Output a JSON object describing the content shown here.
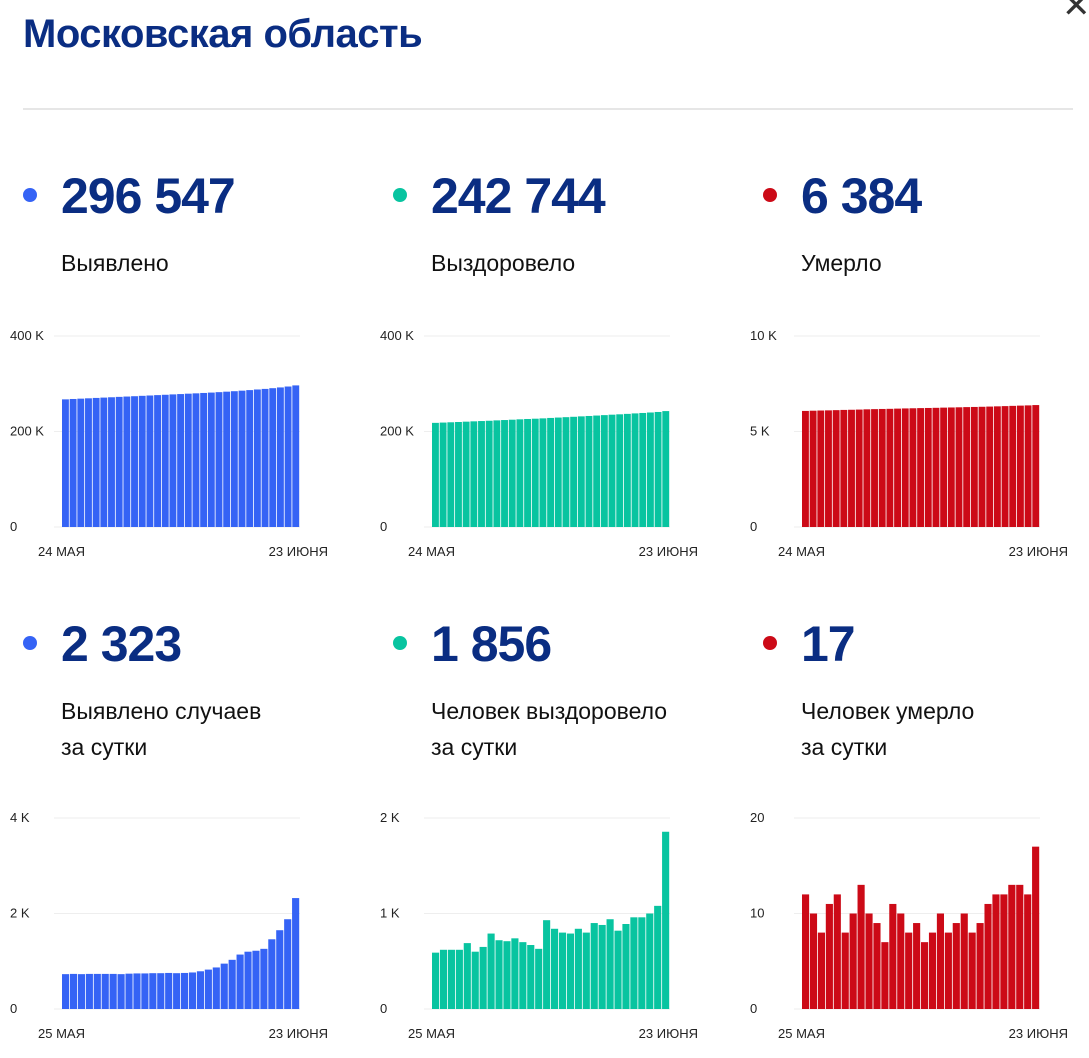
{
  "title": "Московская область",
  "close_icon": "close-icon",
  "colors": {
    "confirmed": "#3563f5",
    "recovered": "#08c4a0",
    "deaths": "#cc0a17"
  },
  "cards": [
    {
      "value": "296 547",
      "label1": "Выявлено",
      "label2": "",
      "color": "#3563f5"
    },
    {
      "value": "242 744",
      "label1": "Выздоровело",
      "label2": "",
      "color": "#08c4a0"
    },
    {
      "value": "6 384",
      "label1": "Умерло",
      "label2": "",
      "color": "#cc0a17"
    },
    {
      "value": "2 323",
      "label1": "Выявлено случаев",
      "label2": "за сутки",
      "color": "#3563f5"
    },
    {
      "value": "1 856",
      "label1": "Человек выздоровело",
      "label2": "за сутки",
      "color": "#08c4a0"
    },
    {
      "value": "17",
      "label1": "Человек умерло",
      "label2": "за сутки",
      "color": "#cc0a17"
    }
  ],
  "chart_data": [
    {
      "type": "bar",
      "title": "Выявлено",
      "ylim": [
        0,
        400000
      ],
      "yticks": [
        "0",
        "200 K",
        "400 K"
      ],
      "xlabels": [
        "24 МАЯ",
        "23 ИЮНЯ"
      ],
      "color": "#3563f5",
      "values": [
        267300,
        268100,
        268800,
        269500,
        270300,
        271000,
        271700,
        272500,
        273200,
        273900,
        274700,
        275400,
        276200,
        276900,
        277700,
        278400,
        279200,
        279900,
        280700,
        281500,
        282400,
        283400,
        284400,
        285500,
        286700,
        288000,
        289200,
        290700,
        292300,
        294200,
        296547
      ]
    },
    {
      "type": "bar",
      "title": "Выздоровело",
      "ylim": [
        0,
        400000
      ],
      "yticks": [
        "0",
        "200 K",
        "400 K"
      ],
      "xlabels": [
        "24 МАЯ",
        "23 ИЮНЯ"
      ],
      "color": "#08c4a0",
      "values": [
        218100,
        218700,
        219300,
        219900,
        220600,
        221300,
        221900,
        222500,
        223300,
        224000,
        224700,
        225500,
        226200,
        226800,
        227500,
        228400,
        229200,
        230000,
        230800,
        231700,
        232500,
        233400,
        234300,
        235200,
        236000,
        236900,
        237900,
        238800,
        239800,
        240900,
        242744
      ]
    },
    {
      "type": "bar",
      "title": "Умерло",
      "ylim": [
        0,
        10000
      ],
      "yticks": [
        "0",
        "5 K",
        "10 K"
      ],
      "xlabels": [
        "24 МАЯ",
        "23 ИЮНЯ"
      ],
      "color": "#cc0a17",
      "values": [
        6077,
        6089,
        6099,
        6107,
        6118,
        6130,
        6138,
        6148,
        6161,
        6171,
        6180,
        6187,
        6198,
        6208,
        6216,
        6225,
        6232,
        6240,
        6250,
        6258,
        6267,
        6277,
        6285,
        6294,
        6305,
        6317,
        6329,
        6342,
        6355,
        6367,
        6384
      ]
    },
    {
      "type": "bar",
      "title": "Выявлено случаев за сутки",
      "ylim": [
        0,
        4000
      ],
      "yticks": [
        "0",
        "2 K",
        "4 K"
      ],
      "xlabels": [
        "25 МАЯ",
        "23 ИЮНЯ"
      ],
      "color": "#3563f5",
      "values": [
        730,
        735,
        730,
        735,
        735,
        735,
        735,
        730,
        740,
        745,
        745,
        750,
        750,
        755,
        750,
        755,
        765,
        790,
        825,
        870,
        950,
        1030,
        1140,
        1200,
        1220,
        1260,
        1460,
        1650,
        1880,
        2323
      ]
    },
    {
      "type": "bar",
      "title": "Человек выздоровело за сутки",
      "ylim": [
        0,
        2000
      ],
      "yticks": [
        "0",
        "1 K",
        "2 K"
      ],
      "xlabels": [
        "25 МАЯ",
        "23 ИЮНЯ"
      ],
      "color": "#08c4a0",
      "values": [
        590,
        620,
        620,
        620,
        690,
        600,
        650,
        790,
        720,
        710,
        740,
        700,
        670,
        630,
        930,
        840,
        800,
        790,
        840,
        800,
        900,
        880,
        940,
        820,
        890,
        960,
        960,
        1000,
        1080,
        1856
      ]
    },
    {
      "type": "bar",
      "title": "Человек умерло за сутки",
      "ylim": [
        0,
        20
      ],
      "yticks": [
        "0",
        "10",
        "20"
      ],
      "xlabels": [
        "25 МАЯ",
        "23 ИЮНЯ"
      ],
      "color": "#cc0a17",
      "values": [
        12,
        10,
        8,
        11,
        12,
        8,
        10,
        13,
        10,
        9,
        7,
        11,
        10,
        8,
        9,
        7,
        8,
        10,
        8,
        9,
        10,
        8,
        9,
        11,
        12,
        12,
        13,
        13,
        12,
        17
      ]
    }
  ]
}
